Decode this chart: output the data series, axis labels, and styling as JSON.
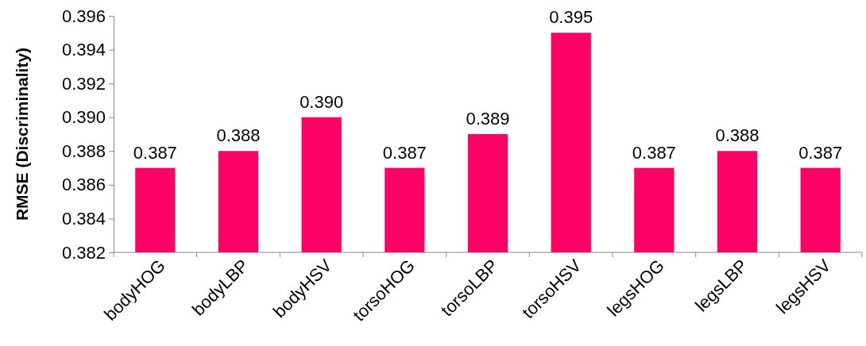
{
  "chart_data": {
    "type": "bar",
    "ylabel": "RMSE (Discriminality)",
    "categories": [
      "bodyHOG",
      "bodyLBP",
      "bodyHSV",
      "torsoHOG",
      "torsoLBP",
      "torsoHSV",
      "legsHOG",
      "legsLBP",
      "legsHSV"
    ],
    "values": [
      0.387,
      0.388,
      0.39,
      0.387,
      0.389,
      0.395,
      0.387,
      0.388,
      0.387
    ],
    "value_labels": [
      "0.387",
      "0.388",
      "0.390",
      "0.387",
      "0.389",
      "0.395",
      "0.387",
      "0.388",
      "0.387"
    ],
    "color": "#ff0066",
    "ylim": [
      0.382,
      0.396
    ],
    "yticks": [
      0.382,
      0.384,
      0.386,
      0.388,
      {
        "value": 0.39,
        "label": "0.390"
      },
      0.392,
      0.394,
      0.396
    ]
  }
}
